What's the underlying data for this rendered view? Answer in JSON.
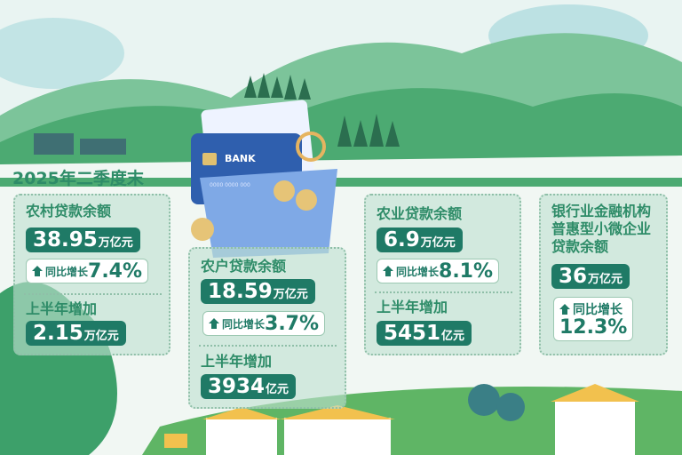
{
  "title": "2025年二季度末",
  "illustration": {
    "card_text": "BANK",
    "card_number": "0000 0000 000"
  },
  "cards": [
    {
      "label": "农村贷款余额",
      "value": "38.95",
      "unit": "万亿元",
      "growth_label": "同比增长",
      "growth": "7.4%",
      "increase_label": "上半年增加",
      "increase_value": "2.15",
      "increase_unit": "万亿元"
    },
    {
      "label": "农户贷款余额",
      "value": "18.59",
      "unit": "万亿元",
      "growth_label": "同比增长",
      "growth": "3.7%",
      "increase_label": "上半年增加",
      "increase_value": "3934",
      "increase_unit": "亿元"
    },
    {
      "label": "农业贷款余额",
      "value": "6.9",
      "unit": "万亿元",
      "growth_label": "同比增长",
      "growth": "8.1%",
      "increase_label": "上半年增加",
      "increase_value": "5451",
      "increase_unit": "亿元"
    },
    {
      "label_lines": [
        "银行业金融机构",
        "普惠型小微企业",
        "贷款余额"
      ],
      "value": "36",
      "unit": "万亿元",
      "growth_label": "同比增长",
      "growth": "12.3%"
    }
  ],
  "colors": {
    "accent": "#1f7a66",
    "text": "#2e8c68",
    "hill": "#4caa72"
  },
  "icons": {
    "growth": "up-arrow-icon"
  }
}
